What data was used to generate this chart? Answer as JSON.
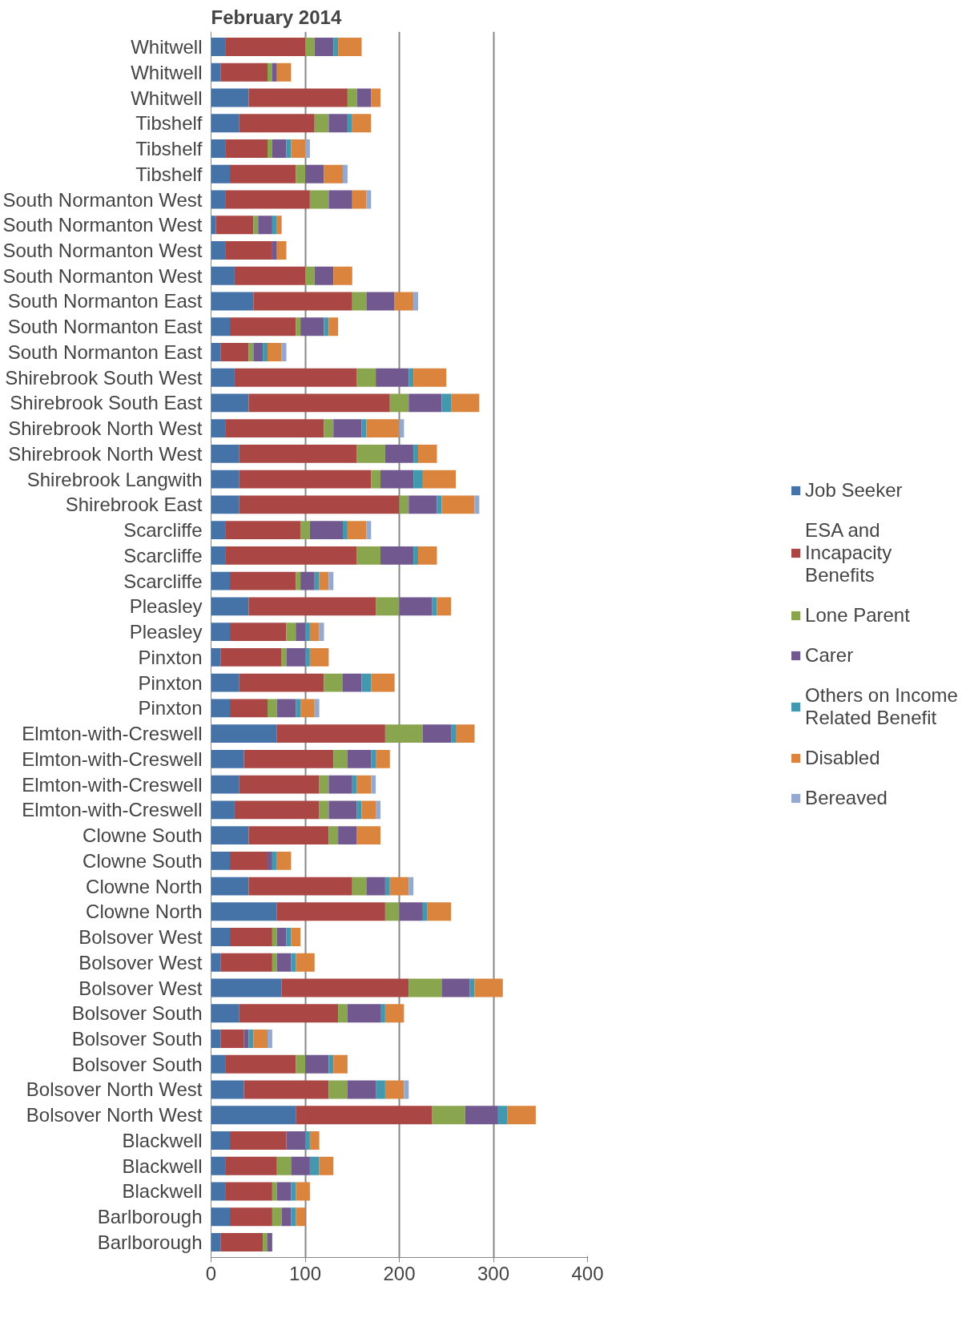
{
  "chart_data": {
    "type": "bar",
    "orientation": "horizontal",
    "stacked": true,
    "title": "February 2014",
    "categories": [
      "Whitwell",
      "Whitwell",
      "Whitwell",
      "Tibshelf",
      "Tibshelf",
      "Tibshelf",
      "South Normanton West",
      "South Normanton West",
      "South Normanton West",
      "South Normanton West",
      "South Normanton East",
      "South Normanton East",
      "South Normanton East",
      "Shirebrook South West",
      "Shirebrook South East",
      "Shirebrook North West",
      "Shirebrook North West",
      "Shirebrook Langwith",
      "Shirebrook East",
      "Scarcliffe",
      "Scarcliffe",
      "Scarcliffe",
      "Pleasley",
      "Pleasley",
      "Pinxton",
      "Pinxton",
      "Pinxton",
      "Elmton-with-Creswell",
      "Elmton-with-Creswell",
      "Elmton-with-Creswell",
      "Elmton-with-Creswell",
      "Clowne South",
      "Clowne South",
      "Clowne North",
      "Clowne North",
      "Bolsover West",
      "Bolsover West",
      "Bolsover West",
      "Bolsover South",
      "Bolsover South",
      "Bolsover South",
      "Bolsover North West",
      "Bolsover North West",
      "Blackwell",
      "Blackwell",
      "Blackwell",
      "Barlborough",
      "Barlborough"
    ],
    "series": [
      {
        "name": "Job Seeker",
        "color": "#4572a7",
        "values": [
          15,
          10,
          40,
          30,
          15,
          20,
          15,
          5,
          15,
          25,
          45,
          20,
          10,
          25,
          40,
          15,
          30,
          30,
          30,
          15,
          15,
          20,
          40,
          20,
          10,
          30,
          20,
          70,
          35,
          30,
          25,
          40,
          20,
          40,
          70,
          20,
          10,
          75,
          30,
          10,
          15,
          35,
          90,
          20,
          15,
          15,
          20,
          10
        ]
      },
      {
        "name": "ESA and Incapacity Benefits",
        "color": "#aa4643",
        "values": [
          85,
          50,
          105,
          80,
          45,
          70,
          90,
          40,
          50,
          75,
          105,
          70,
          30,
          130,
          150,
          105,
          125,
          140,
          170,
          80,
          140,
          70,
          135,
          60,
          65,
          90,
          40,
          115,
          95,
          85,
          90,
          85,
          40,
          110,
          115,
          45,
          55,
          135,
          105,
          25,
          75,
          90,
          145,
          60,
          55,
          50,
          45,
          45
        ]
      },
      {
        "name": "Lone Parent",
        "color": "#89a54e",
        "values": [
          10,
          5,
          10,
          15,
          5,
          10,
          20,
          5,
          0,
          10,
          15,
          5,
          5,
          20,
          20,
          10,
          30,
          10,
          10,
          10,
          25,
          5,
          25,
          10,
          5,
          20,
          10,
          40,
          15,
          10,
          10,
          10,
          0,
          15,
          15,
          5,
          5,
          35,
          10,
          0,
          10,
          20,
          35,
          0,
          15,
          5,
          10,
          5
        ]
      },
      {
        "name": "Carer",
        "color": "#71588f",
        "values": [
          20,
          5,
          15,
          20,
          15,
          20,
          25,
          15,
          5,
          20,
          30,
          25,
          10,
          35,
          35,
          30,
          30,
          35,
          30,
          35,
          35,
          15,
          35,
          10,
          20,
          20,
          20,
          30,
          25,
          25,
          30,
          20,
          5,
          20,
          25,
          10,
          15,
          30,
          35,
          5,
          25,
          30,
          35,
          20,
          20,
          15,
          10,
          5
        ]
      },
      {
        "name": "Others on Income Related Benefit",
        "color": "#4198af",
        "values": [
          5,
          0,
          0,
          5,
          5,
          0,
          0,
          5,
          0,
          0,
          0,
          5,
          5,
          5,
          10,
          5,
          5,
          10,
          5,
          5,
          5,
          5,
          5,
          5,
          5,
          10,
          5,
          5,
          5,
          5,
          5,
          0,
          5,
          5,
          5,
          5,
          5,
          5,
          5,
          5,
          5,
          10,
          10,
          5,
          10,
          5,
          5,
          0
        ]
      },
      {
        "name": "Disabled",
        "color": "#db843d",
        "values": [
          25,
          15,
          10,
          20,
          15,
          20,
          15,
          5,
          10,
          20,
          20,
          10,
          15,
          35,
          30,
          35,
          20,
          35,
          35,
          20,
          20,
          10,
          15,
          10,
          20,
          25,
          15,
          20,
          15,
          15,
          15,
          25,
          15,
          20,
          25,
          10,
          20,
          30,
          20,
          15,
          15,
          20,
          30,
          10,
          15,
          15,
          10,
          0
        ]
      },
      {
        "name": "Bereaved",
        "color": "#93a9cf",
        "values": [
          0,
          0,
          0,
          0,
          5,
          5,
          5,
          0,
          0,
          0,
          5,
          0,
          5,
          0,
          0,
          5,
          0,
          0,
          5,
          5,
          0,
          5,
          0,
          5,
          0,
          0,
          5,
          0,
          0,
          5,
          5,
          0,
          0,
          5,
          0,
          0,
          0,
          0,
          0,
          5,
          0,
          5,
          0,
          0,
          0,
          0,
          0,
          0
        ]
      }
    ],
    "xlim": [
      0,
      400
    ],
    "xticks": [
      0,
      100,
      200,
      300,
      400
    ],
    "grid": "x",
    "legend": "right"
  }
}
